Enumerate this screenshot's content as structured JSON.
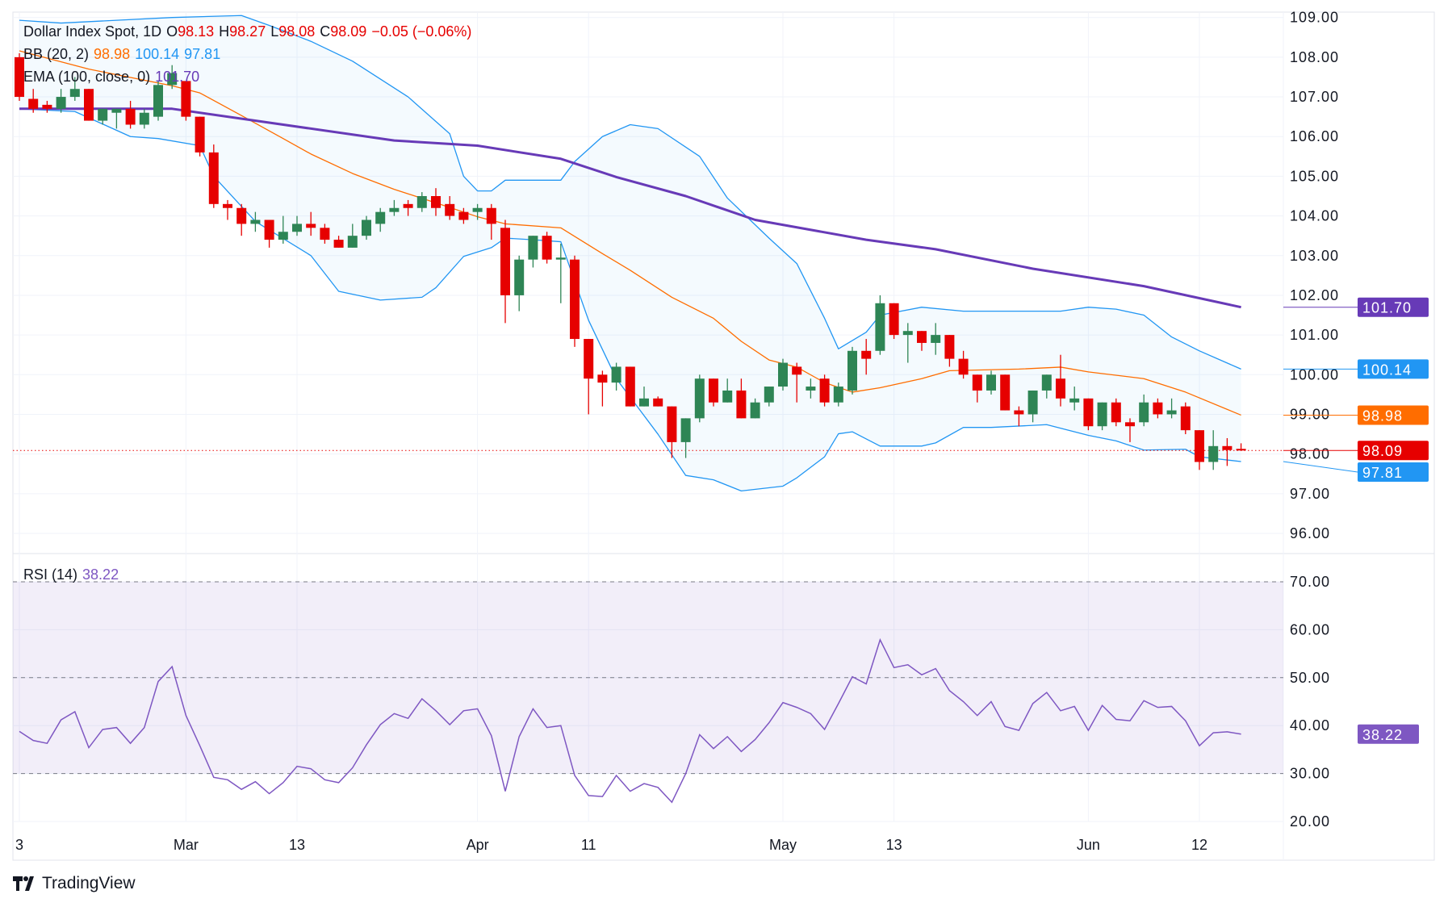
{
  "header": {
    "symbol": "Dollar Index Spot, 1D",
    "o_label": "O",
    "o": "98.13",
    "h_label": "H",
    "h": "98.27",
    "l_label": "L",
    "l": "98.08",
    "c_label": "C",
    "c": "98.09",
    "change": "−0.05 (−0.06%)"
  },
  "bb_legend": {
    "label": "BB (20, 2)",
    "basis": "98.98",
    "upper": "100.14",
    "lower": "97.81"
  },
  "ema_legend": {
    "label": "EMA (100, close, 0)",
    "value": "101.70"
  },
  "rsi_legend": {
    "label": "RSI (14)",
    "value": "38.22"
  },
  "brand": "TradingView",
  "colors": {
    "up": "#2e8555",
    "down": "#e60000",
    "bb_upper_lower": "#2196f3",
    "bb_basis": "#ff6d00",
    "ema": "#673ab7",
    "rsi": "#7e57c2"
  },
  "chart_data": [
    {
      "type": "candlestick",
      "title": "Dollar Index Spot, 1D",
      "ylim": [
        96,
        109
      ],
      "y_ticks": [
        "109.00",
        "108.00",
        "107.00",
        "106.00",
        "105.00",
        "104.00",
        "103.00",
        "102.00",
        "101.00",
        "100.00",
        "99.00",
        "98.00",
        "97.00",
        "96.00"
      ],
      "x_ticks": [
        {
          "label": "3",
          "bar": 0
        },
        {
          "label": "Mar",
          "bar": 12
        },
        {
          "label": "13",
          "bar": 20
        },
        {
          "label": "Apr",
          "bar": 33
        },
        {
          "label": "11",
          "bar": 41
        },
        {
          "label": "May",
          "bar": 55
        },
        {
          "label": "13",
          "bar": 63
        },
        {
          "label": "Jun",
          "bar": 77
        },
        {
          "label": "12",
          "bar": 85
        }
      ],
      "grid": true,
      "ohlc": [
        [
          108.0,
          108.1,
          106.9,
          107.0
        ],
        [
          106.95,
          107.2,
          106.6,
          106.7
        ],
        [
          106.8,
          106.9,
          106.6,
          106.7
        ],
        [
          106.7,
          107.2,
          106.6,
          107.0
        ],
        [
          107.0,
          107.5,
          106.9,
          107.2
        ],
        [
          107.2,
          107.2,
          106.4,
          106.4
        ],
        [
          106.4,
          106.7,
          106.3,
          106.7
        ],
        [
          106.6,
          106.7,
          106.2,
          106.7
        ],
        [
          106.7,
          106.9,
          106.2,
          106.3
        ],
        [
          106.3,
          106.7,
          106.2,
          106.6
        ],
        [
          106.5,
          107.4,
          106.4,
          107.3
        ],
        [
          107.3,
          107.8,
          107.2,
          107.6
        ],
        [
          107.4,
          107.4,
          106.4,
          106.5
        ],
        [
          106.5,
          106.5,
          105.5,
          105.6
        ],
        [
          105.6,
          105.8,
          104.2,
          104.3
        ],
        [
          104.3,
          104.4,
          103.9,
          104.2
        ],
        [
          104.2,
          104.3,
          103.5,
          103.8
        ],
        [
          103.8,
          104.1,
          103.6,
          103.9
        ],
        [
          103.9,
          103.9,
          103.2,
          103.4
        ],
        [
          103.4,
          104.0,
          103.3,
          103.6
        ],
        [
          103.6,
          104.0,
          103.5,
          103.8
        ],
        [
          103.8,
          104.1,
          103.5,
          103.7
        ],
        [
          103.7,
          103.8,
          103.3,
          103.4
        ],
        [
          103.4,
          103.5,
          103.2,
          103.2
        ],
        [
          103.2,
          103.8,
          103.2,
          103.5
        ],
        [
          103.5,
          104.0,
          103.4,
          103.9
        ],
        [
          103.8,
          104.2,
          103.6,
          104.1
        ],
        [
          104.1,
          104.4,
          104.0,
          104.2
        ],
        [
          104.3,
          104.4,
          104.0,
          104.2
        ],
        [
          104.2,
          104.6,
          104.1,
          104.5
        ],
        [
          104.5,
          104.7,
          104.0,
          104.2
        ],
        [
          104.3,
          104.5,
          103.9,
          104.0
        ],
        [
          104.1,
          104.2,
          103.8,
          103.9
        ],
        [
          104.1,
          104.3,
          103.9,
          104.2
        ],
        [
          104.2,
          104.3,
          103.4,
          103.8
        ],
        [
          103.7,
          103.9,
          101.3,
          102.0
        ],
        [
          102.0,
          103.0,
          101.6,
          102.9
        ],
        [
          102.9,
          103.5,
          102.7,
          103.5
        ],
        [
          103.5,
          103.6,
          102.8,
          102.9
        ],
        [
          102.9,
          103.3,
          101.8,
          102.95
        ],
        [
          102.9,
          103.0,
          100.7,
          100.9
        ],
        [
          100.9,
          100.9,
          99.0,
          99.9
        ],
        [
          100.0,
          100.1,
          99.2,
          99.8
        ],
        [
          99.8,
          100.3,
          99.6,
          100.2
        ],
        [
          100.2,
          100.2,
          99.2,
          99.2
        ],
        [
          99.2,
          99.7,
          99.2,
          99.4
        ],
        [
          99.4,
          99.45,
          99.2,
          99.2
        ],
        [
          99.2,
          99.2,
          97.9,
          98.3
        ],
        [
          98.3,
          98.9,
          97.9,
          98.9
        ],
        [
          98.9,
          100.0,
          98.8,
          99.9
        ],
        [
          99.9,
          99.9,
          99.2,
          99.3
        ],
        [
          99.3,
          99.9,
          99.3,
          99.6
        ],
        [
          99.6,
          99.9,
          98.9,
          98.9
        ],
        [
          98.9,
          99.4,
          98.9,
          99.3
        ],
        [
          99.3,
          99.7,
          99.2,
          99.7
        ],
        [
          99.7,
          100.4,
          99.6,
          100.3
        ],
        [
          100.2,
          100.3,
          99.3,
          100.0
        ],
        [
          99.6,
          99.9,
          99.4,
          99.7
        ],
        [
          99.9,
          100.0,
          99.2,
          99.3
        ],
        [
          99.3,
          99.8,
          99.2,
          99.7
        ],
        [
          99.6,
          100.7,
          99.5,
          100.6
        ],
        [
          100.6,
          100.9,
          100.0,
          100.4
        ],
        [
          100.6,
          102.0,
          100.5,
          101.8
        ],
        [
          101.8,
          101.8,
          100.9,
          101.0
        ],
        [
          101.0,
          101.3,
          100.3,
          101.1
        ],
        [
          101.1,
          101.1,
          100.6,
          100.8
        ],
        [
          100.8,
          101.3,
          100.5,
          101.0
        ],
        [
          101.0,
          101.0,
          100.2,
          100.4
        ],
        [
          100.4,
          100.6,
          99.9,
          100.0
        ],
        [
          100.0,
          100.0,
          99.3,
          99.6
        ],
        [
          99.6,
          100.1,
          99.5,
          100.0
        ],
        [
          100.0,
          100.0,
          99.1,
          99.1
        ],
        [
          99.1,
          99.2,
          98.7,
          99.0
        ],
        [
          99.0,
          99.6,
          98.8,
          99.6
        ],
        [
          99.6,
          100.0,
          99.4,
          100.0
        ],
        [
          99.9,
          100.5,
          99.2,
          99.4
        ],
        [
          99.3,
          99.7,
          99.1,
          99.4
        ],
        [
          99.4,
          99.4,
          98.6,
          98.7
        ],
        [
          98.7,
          99.3,
          98.6,
          99.3
        ],
        [
          99.3,
          99.4,
          98.7,
          98.8
        ],
        [
          98.8,
          98.9,
          98.3,
          98.7
        ],
        [
          98.8,
          99.5,
          98.7,
          99.3
        ],
        [
          99.3,
          99.4,
          98.9,
          99.0
        ],
        [
          99.0,
          99.4,
          98.9,
          99.1
        ],
        [
          99.2,
          99.3,
          98.5,
          98.6
        ],
        [
          98.6,
          98.6,
          97.6,
          97.8
        ],
        [
          97.8,
          98.6,
          97.6,
          98.2
        ],
        [
          98.2,
          98.4,
          97.7,
          98.1
        ],
        [
          98.13,
          98.27,
          98.08,
          98.09
        ]
      ],
      "last_price": 98.09,
      "overlays": {
        "bb_upper": [
          [
            0,
            108.93
          ],
          [
            3,
            108.86
          ],
          [
            7,
            108.93
          ],
          [
            11,
            109.0
          ],
          [
            16,
            109.05
          ],
          [
            18,
            108.8
          ],
          [
            21,
            108.4
          ],
          [
            24,
            107.9
          ],
          [
            28,
            107.0
          ],
          [
            31,
            106.07
          ],
          [
            32,
            105.0
          ],
          [
            33,
            104.63
          ],
          [
            34,
            104.63
          ],
          [
            35,
            104.9
          ],
          [
            39,
            104.9
          ],
          [
            40,
            105.37
          ],
          [
            42,
            106.0
          ],
          [
            44,
            106.3
          ],
          [
            46,
            106.2
          ],
          [
            49,
            105.5
          ],
          [
            51,
            104.45
          ],
          [
            54,
            103.44
          ],
          [
            56,
            102.8
          ],
          [
            58,
            101.42
          ],
          [
            59,
            100.65
          ],
          [
            61,
            101.07
          ],
          [
            62,
            101.5
          ],
          [
            65,
            101.7
          ],
          [
            68,
            101.6
          ],
          [
            75,
            101.6
          ],
          [
            77,
            101.7
          ],
          [
            79,
            101.65
          ],
          [
            81,
            101.5
          ],
          [
            83,
            100.95
          ],
          [
            85,
            100.6
          ],
          [
            88,
            100.14
          ]
        ],
        "bb_basis": [
          [
            0,
            108.16
          ],
          [
            5,
            107.7
          ],
          [
            11,
            107.28
          ],
          [
            13,
            107.1
          ],
          [
            16,
            106.53
          ],
          [
            19,
            105.95
          ],
          [
            21,
            105.56
          ],
          [
            24,
            105.07
          ],
          [
            27,
            104.67
          ],
          [
            30,
            104.33
          ],
          [
            33,
            103.98
          ],
          [
            35,
            103.8
          ],
          [
            39,
            103.7
          ],
          [
            42,
            103.05
          ],
          [
            44,
            102.63
          ],
          [
            47,
            101.95
          ],
          [
            50,
            101.42
          ],
          [
            52,
            100.84
          ],
          [
            54,
            100.37
          ],
          [
            56,
            100.19
          ],
          [
            58,
            99.8
          ],
          [
            60,
            99.56
          ],
          [
            62,
            99.67
          ],
          [
            65,
            99.9
          ],
          [
            67,
            100.1
          ],
          [
            72,
            100.14
          ],
          [
            75,
            100.19
          ],
          [
            77,
            100.07
          ],
          [
            81,
            99.9
          ],
          [
            84,
            99.56
          ],
          [
            88,
            98.98
          ]
        ],
        "bb_lower": [
          [
            0,
            106.7
          ],
          [
            4,
            106.63
          ],
          [
            8,
            106.0
          ],
          [
            10,
            105.95
          ],
          [
            13,
            105.77
          ],
          [
            14,
            105.0
          ],
          [
            17,
            103.86
          ],
          [
            21,
            103.0
          ],
          [
            23,
            102.1
          ],
          [
            26,
            101.88
          ],
          [
            29,
            101.95
          ],
          [
            30,
            102.19
          ],
          [
            32,
            102.98
          ],
          [
            34,
            103.2
          ],
          [
            35,
            103.44
          ],
          [
            37,
            103.4
          ],
          [
            39,
            103.35
          ],
          [
            41,
            101.37
          ],
          [
            43,
            99.9
          ],
          [
            46,
            98.5
          ],
          [
            48,
            97.46
          ],
          [
            50,
            97.35
          ],
          [
            52,
            97.07
          ],
          [
            55,
            97.19
          ],
          [
            56,
            97.4
          ],
          [
            58,
            97.93
          ],
          [
            59,
            98.51
          ],
          [
            60,
            98.56
          ],
          [
            62,
            98.2
          ],
          [
            65,
            98.2
          ],
          [
            66,
            98.28
          ],
          [
            68,
            98.67
          ],
          [
            70,
            98.67
          ],
          [
            74,
            98.74
          ],
          [
            77,
            98.47
          ],
          [
            79,
            98.33
          ],
          [
            81,
            98.1
          ],
          [
            84,
            98.12
          ],
          [
            85,
            97.93
          ],
          [
            88,
            97.81
          ]
        ],
        "ema100": [
          [
            0,
            106.7
          ],
          [
            11,
            106.7
          ],
          [
            18,
            106.35
          ],
          [
            27,
            105.9
          ],
          [
            33,
            105.77
          ],
          [
            39,
            105.44
          ],
          [
            43,
            104.98
          ],
          [
            48,
            104.5
          ],
          [
            53,
            103.9
          ],
          [
            61,
            103.4
          ],
          [
            66,
            103.16
          ],
          [
            73,
            102.67
          ],
          [
            81,
            102.23
          ],
          [
            88,
            101.7
          ]
        ]
      },
      "price_labels": [
        {
          "value": 101.7,
          "text": "101.70",
          "color": "#673ab7"
        },
        {
          "value": 100.14,
          "text": "100.14",
          "color": "#2196f3"
        },
        {
          "value": 98.98,
          "text": "98.98",
          "color": "#ff6d00"
        },
        {
          "value": 98.09,
          "text": "98.09",
          "color": "#e60000"
        },
        {
          "value": 97.81,
          "text": "97.81",
          "color": "#2196f3"
        }
      ]
    },
    {
      "type": "line",
      "title": "RSI (14)",
      "ylim": [
        20,
        70
      ],
      "y_ticks": [
        "70.00",
        "60.00",
        "50.00",
        "40.00",
        "30.00",
        "20.00"
      ],
      "band": [
        30,
        70
      ],
      "dashed_levels": [
        70,
        50,
        30
      ],
      "values": [
        38.8,
        36.9,
        36.3,
        41.2,
        42.9,
        35.4,
        39.2,
        39.6,
        36.3,
        39.6,
        49.2,
        52.3,
        42.1,
        35.8,
        29.2,
        28.7,
        26.7,
        28.3,
        25.8,
        28.1,
        31.5,
        31.0,
        28.7,
        28.1,
        31.2,
        36.0,
        40.2,
        42.5,
        41.5,
        45.6,
        43.1,
        40.2,
        43.1,
        43.5,
        37.9,
        26.3,
        37.7,
        43.5,
        39.6,
        40.0,
        29.6,
        25.4,
        25.2,
        29.6,
        26.3,
        27.9,
        27.1,
        24.0,
        30.0,
        38.1,
        35.2,
        37.7,
        34.6,
        37.1,
        40.6,
        44.8,
        43.8,
        42.5,
        39.2,
        44.6,
        50.2,
        48.7,
        57.9,
        52.1,
        52.7,
        50.6,
        51.9,
        47.3,
        45.0,
        42.1,
        45.0,
        39.8,
        39.0,
        44.6,
        46.9,
        43.1,
        44.0,
        39.0,
        44.2,
        41.3,
        41.0,
        45.2,
        43.8,
        44.0,
        41.0,
        35.8,
        38.5,
        38.7,
        38.22
      ],
      "last_label": {
        "text": "38.22",
        "color": "#7e57c2"
      }
    }
  ]
}
